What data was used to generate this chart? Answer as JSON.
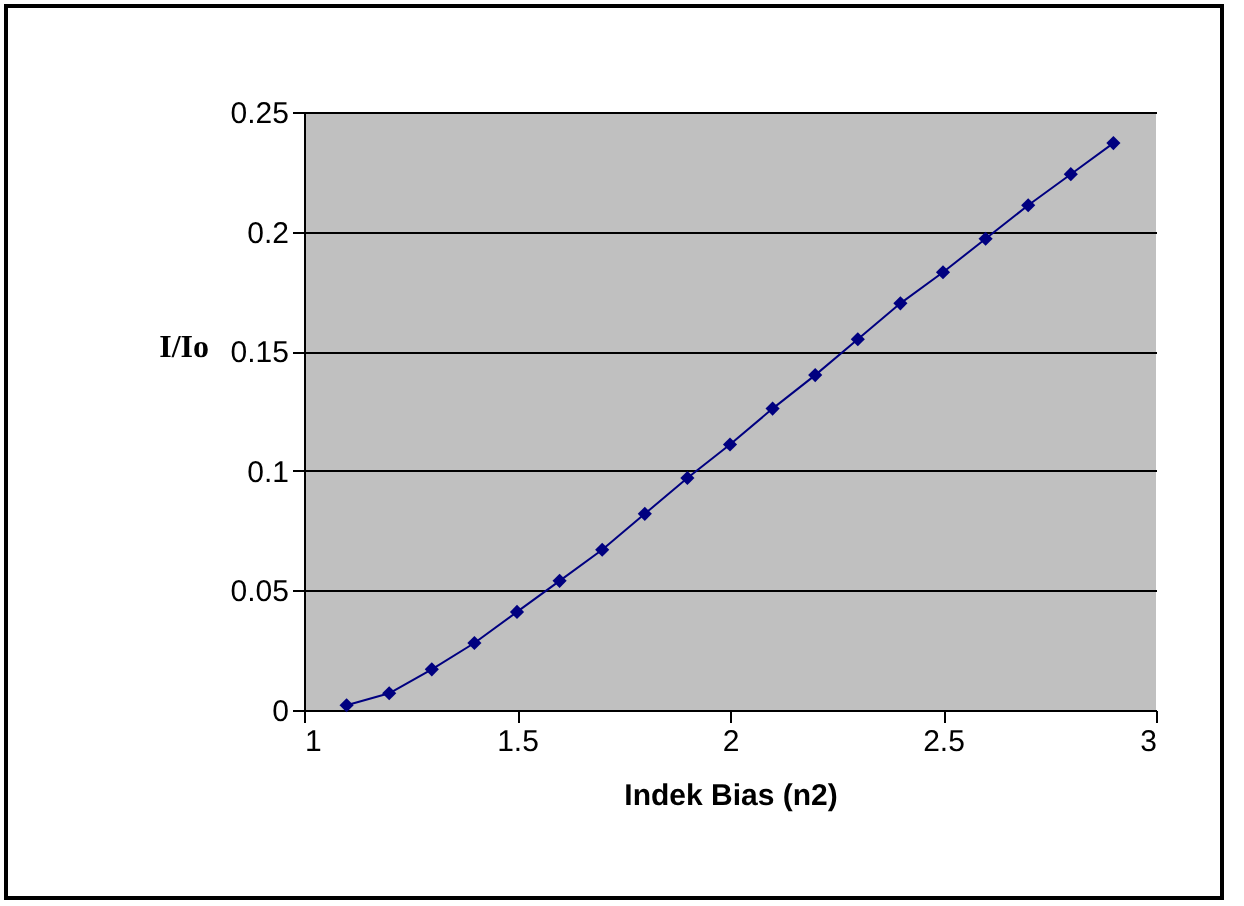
{
  "chart_data": {
    "type": "line",
    "xlabel": "Indek Bias (n2)",
    "ylabel": "I/Io",
    "x": [
      1.1,
      1.2,
      1.3,
      1.4,
      1.5,
      1.6,
      1.7,
      1.8,
      1.9,
      2.0,
      2.1,
      2.2,
      2.3,
      2.4,
      2.5,
      2.6,
      2.7,
      2.8,
      2.9
    ],
    "series": [
      {
        "color": "#000080",
        "values": [
          0.002,
          0.007,
          0.017,
          0.028,
          0.041,
          0.054,
          0.067,
          0.082,
          0.097,
          0.111,
          0.126,
          0.14,
          0.155,
          0.17,
          0.183,
          0.197,
          0.211,
          0.224,
          0.237
        ]
      }
    ],
    "xlim": [
      1,
      3
    ],
    "xticks": [
      1,
      1.5,
      2,
      2.5,
      3
    ],
    "ylim": [
      0,
      0.25
    ],
    "yticks": [
      0,
      0.05,
      0.1,
      0.15,
      0.2,
      0.25
    ],
    "grid": "y",
    "marker": "diamond",
    "line_style": "solid",
    "legend": false
  }
}
